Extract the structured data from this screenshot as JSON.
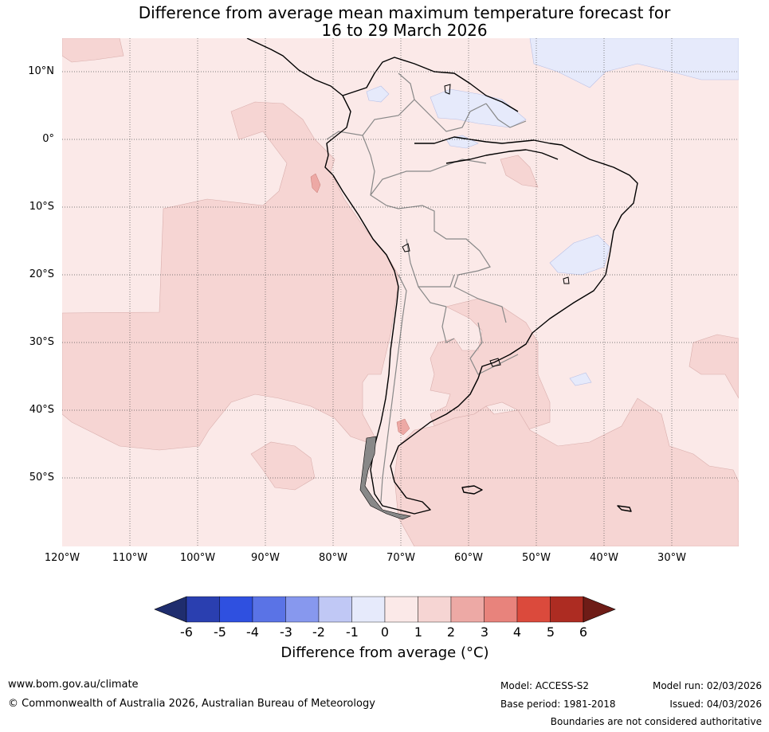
{
  "title_line1": "Difference from average mean maximum temperature forecast for",
  "title_line2": "16 to 29 March 2026",
  "map": {
    "lat_labels": [
      "10°N",
      "0°",
      "10°S",
      "20°S",
      "30°S",
      "40°S",
      "50°S"
    ],
    "lon_labels": [
      "120°W",
      "110°W",
      "100°W",
      "90°W",
      "80°W",
      "70°W",
      "60°W",
      "50°W",
      "40°W",
      "30°W"
    ]
  },
  "colorbar": {
    "ticks": [
      "-6",
      "-5",
      "-4",
      "-3",
      "-2",
      "-1",
      "0",
      "1",
      "2",
      "3",
      "4",
      "5",
      "6"
    ],
    "colors": [
      "#1f2d6e",
      "#2a3fb0",
      "#2f50e0",
      "#5a73e6",
      "#8798ee",
      "#c0c8f5",
      "#e6eafb",
      "#fbe9e8",
      "#f6d5d3",
      "#eda9a5",
      "#e8837c",
      "#db4a3c",
      "#ad2c22",
      "#6e1c17"
    ],
    "label": "Difference from average (°C)"
  },
  "footer": {
    "website": "www.bom.gov.au/climate",
    "copyright": "© Commonwealth of Australia 2026, Australian Bureau of Meteorology",
    "model": "Model: ACCESS-S2",
    "base_period": "Base period: 1981-2018",
    "model_run": "Model run: 02/03/2026",
    "issued": "Issued: 04/03/2026",
    "disclaimer": "Boundaries are not considered authoritative"
  }
}
